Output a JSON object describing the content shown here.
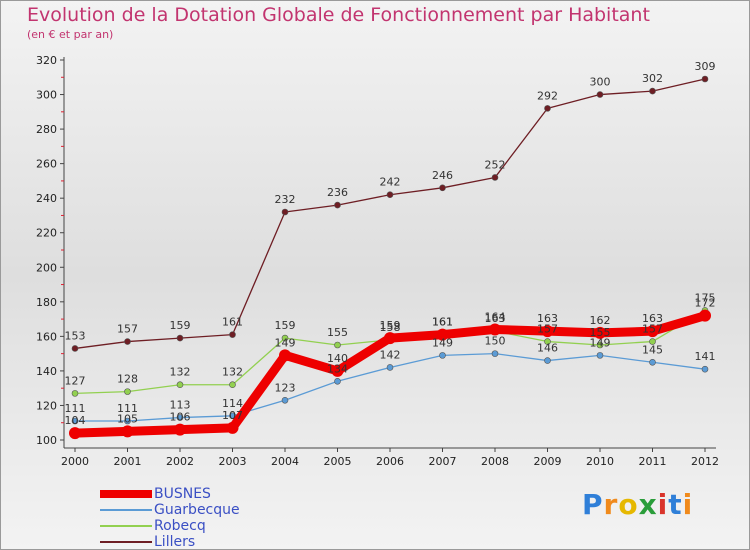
{
  "chart_data": {
    "type": "line",
    "title": "Evolution de la Dotation Globale de Fonctionnement par Habitant",
    "subtitle": "(en € et par an)",
    "categories": [
      "2000",
      "2001",
      "2002",
      "2003",
      "2004",
      "2005",
      "2006",
      "2007",
      "2008",
      "2009",
      "2010",
      "2011",
      "2012"
    ],
    "ylim": [
      100,
      320
    ],
    "yticks": [
      100,
      120,
      140,
      160,
      180,
      200,
      220,
      240,
      260,
      280,
      300,
      320
    ],
    "grid": false,
    "legend_position": "bottom-left",
    "series": [
      {
        "name": "BUSNES",
        "color": "#ee0000",
        "values": [
          104,
          105,
          106,
          107,
          149,
          140,
          159,
          161,
          164,
          163,
          162,
          163,
          172
        ]
      },
      {
        "name": "Guarbecque",
        "color": "#5b9bd5",
        "values": [
          111,
          111,
          113,
          114,
          123,
          134,
          142,
          149,
          150,
          146,
          149,
          145,
          141
        ]
      },
      {
        "name": "Robecq",
        "color": "#92d050",
        "values": [
          127,
          128,
          132,
          132,
          159,
          155,
          158,
          161,
          163,
          157,
          155,
          157,
          175
        ]
      },
      {
        "name": "Lillers",
        "color": "#6e1e24",
        "values": [
          153,
          157,
          159,
          161,
          232,
          236,
          242,
          246,
          252,
          292,
          300,
          302,
          309
        ]
      }
    ]
  },
  "logo": {
    "letters": [
      "P",
      "r",
      "o",
      "x",
      "i",
      "t",
      "i"
    ],
    "colors": [
      "#2f7fd8",
      "#f08a1c",
      "#e6b800",
      "#2a9d3a",
      "#d9342b",
      "#2f7fd8",
      "#f08a1c"
    ]
  }
}
